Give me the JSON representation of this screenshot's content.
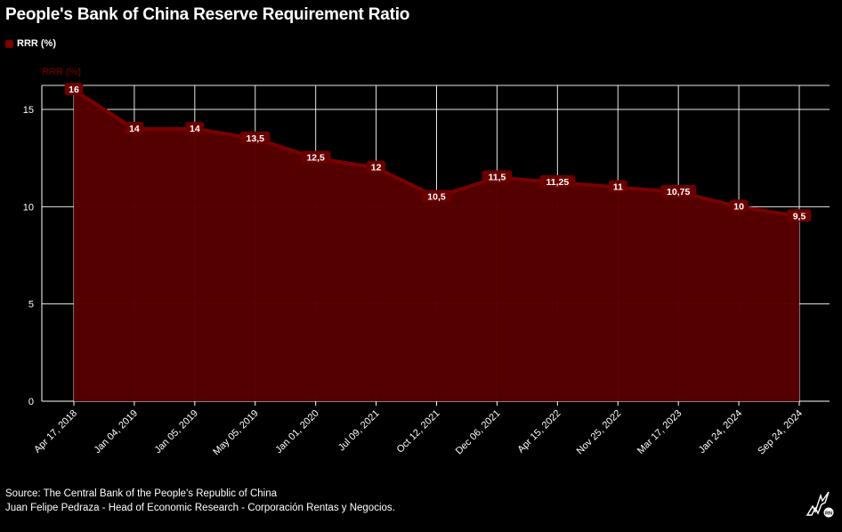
{
  "title": "People's Bank of China Reserve Requirement Ratio",
  "legend": {
    "label": "RRR (%)"
  },
  "colors": {
    "area_fill": "#560000",
    "line": "#7a0000",
    "label_bg": "#6a0000",
    "grid": "#ffffff",
    "background": "#000000"
  },
  "chart_data": {
    "type": "area",
    "title": "People's Bank of China Reserve Requirement Ratio",
    "ylabel": "RRR (%)",
    "xlabel": "",
    "ylim": [
      0,
      16
    ],
    "yticks": [
      0,
      5,
      10,
      15
    ],
    "grid": true,
    "legend_position": "top-left",
    "categories": [
      "Apr 17, 2018",
      "Jan 04, 2019",
      "Jan 05, 2019",
      "May 05, 2019",
      "Jan 01, 2020",
      "Jul 09, 2021",
      "Oct 12, 2021",
      "Dec 06, 2021",
      "Apr 15, 2022",
      "Nov 25, 2022",
      "Mar 17, 2023",
      "Jan 24, 2024",
      "Sep 24, 2024"
    ],
    "series": [
      {
        "name": "RRR (%)",
        "values": [
          16,
          14,
          14,
          13.5,
          12.5,
          12,
          10.5,
          11.5,
          11.25,
          11,
          10.75,
          10,
          9.5
        ],
        "value_labels": [
          "16",
          "14",
          "14",
          "13,5",
          "12,5",
          "12",
          "10,5",
          "11,5",
          "11,25",
          "11",
          "10,75",
          "10",
          "9,5"
        ]
      }
    ]
  },
  "footer": {
    "source": "Source: The Central Bank of the People's Republic of China",
    "author": "Juan Felipe Pedraza - Head of Economic Research - Corporación Rentas y Negocios."
  },
  "logo": {
    "icon": "bird-logo-icon",
    "text": "RN"
  }
}
